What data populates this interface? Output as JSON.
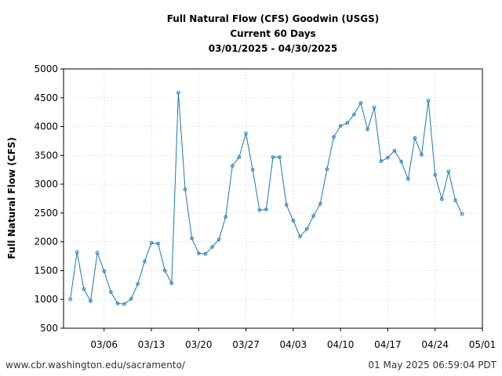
{
  "chart_data": {
    "type": "line",
    "title": [
      "Full Natural Flow (CFS) Goodwin (USGS)",
      "Current 60 Days",
      "03/01/2025 - 04/30/2025"
    ],
    "ylabel": "Full Natural Flow (CFS)",
    "xlabel": "",
    "ylim": [
      500,
      5000
    ],
    "yticks": [
      "500",
      "1000",
      "1500",
      "2000",
      "2500",
      "3000",
      "3500",
      "4000",
      "4500",
      "5000"
    ],
    "xlim": [
      0,
      62
    ],
    "xticks": [
      {
        "day": 6,
        "label": "03/06"
      },
      {
        "day": 13,
        "label": "03/13"
      },
      {
        "day": 20,
        "label": "03/20"
      },
      {
        "day": 27,
        "label": "03/27"
      },
      {
        "day": 34,
        "label": "04/03"
      },
      {
        "day": 41,
        "label": "04/10"
      },
      {
        "day": 48,
        "label": "04/17"
      },
      {
        "day": 55,
        "label": "04/24"
      },
      {
        "day": 62,
        "label": "05/01"
      }
    ],
    "grid": true,
    "line_color": "#1f77b4",
    "series": [
      {
        "name": "Full Natural Flow",
        "x": [
          1,
          2,
          3,
          4,
          5,
          6,
          7,
          8,
          9,
          10,
          11,
          12,
          13,
          14,
          15,
          16,
          17,
          18,
          19,
          20,
          21,
          22,
          23,
          24,
          25,
          26,
          27,
          28,
          29,
          30,
          31,
          32,
          33,
          34,
          35,
          36,
          37,
          38,
          39,
          40,
          41,
          42,
          43,
          44,
          45,
          46,
          47,
          48,
          49,
          50,
          51,
          52,
          53,
          54,
          55,
          56,
          57,
          58,
          59,
          60
        ],
        "values": [
          1000,
          1820,
          1180,
          970,
          1810,
          1490,
          1130,
          930,
          920,
          1010,
          1270,
          1660,
          1980,
          1970,
          1500,
          1280,
          4590,
          2910,
          2060,
          1800,
          1790,
          1910,
          2040,
          2430,
          3320,
          3470,
          3880,
          3250,
          2550,
          2560,
          3470,
          3470,
          2640,
          2370,
          2090,
          2220,
          2450,
          2660,
          3260,
          3820,
          4010,
          4060,
          4210,
          4410,
          3950,
          4330,
          3400,
          3460,
          3580,
          3390,
          3090,
          3800,
          3510,
          4450,
          3160,
          2740,
          3220,
          2720,
          2480,
          null
        ]
      }
    ]
  },
  "footer": {
    "source": "www.cbr.washington.edu/sacramento/",
    "timestamp": "01 May 2025 06:59:04 PDT"
  }
}
